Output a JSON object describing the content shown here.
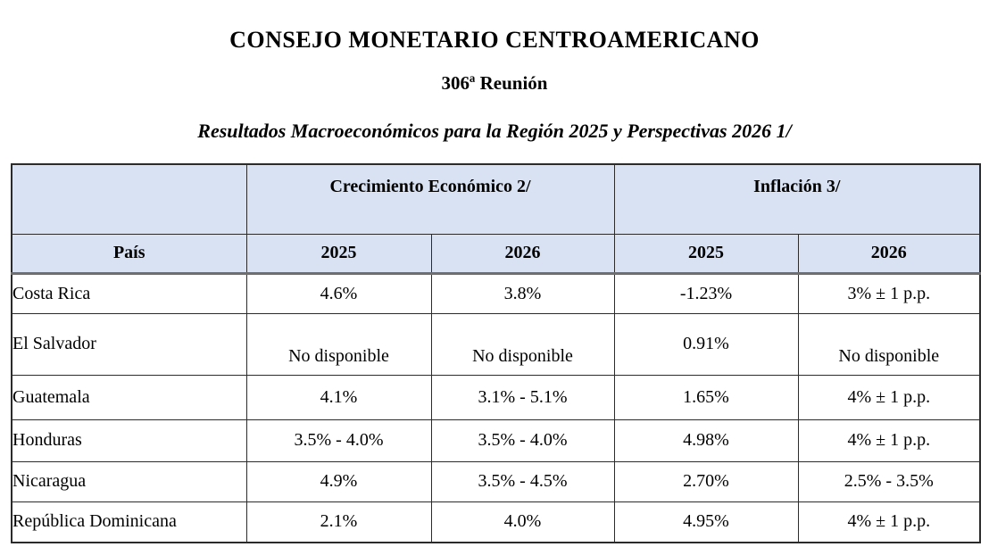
{
  "document": {
    "title": "CONSEJO MONETARIO CENTROAMERICANO",
    "meeting": "306ª Reunión",
    "table_caption": "Resultados Macroeconómicos para la Región 2025 y Perspectivas 2026 1/"
  },
  "table": {
    "group_headers": [
      "Crecimiento Económico 2/",
      "Inflación 3/"
    ],
    "column_headers": [
      "País",
      "2025",
      "2026",
      "2025",
      "2026"
    ],
    "rows": [
      [
        "Costa Rica",
        "4.6%",
        "3.8%",
        "-1.23%",
        "3% ± 1 p.p."
      ],
      [
        "El Salvador",
        "No disponible",
        "No disponible",
        "0.91%",
        "No disponible"
      ],
      [
        "Guatemala",
        "4.1%",
        "3.1% - 5.1%",
        "1.65%",
        "4% ± 1 p.p."
      ],
      [
        "Honduras",
        "3.5% - 4.0%",
        "3.5% - 4.0%",
        "4.98%",
        "4% ± 1 p.p."
      ],
      [
        "Nicaragua",
        "4.9%",
        "3.5% - 4.5%",
        "2.70%",
        "2.5% - 3.5%"
      ],
      [
        "República Dominicana",
        "2.1%",
        "4.0%",
        "4.95%",
        "4% ± 1 p.p."
      ]
    ]
  },
  "colors": {
    "header_bg": "#d9e2f3",
    "border_dark": "#2b2b2b",
    "header_separator": "#6e6e6e"
  }
}
